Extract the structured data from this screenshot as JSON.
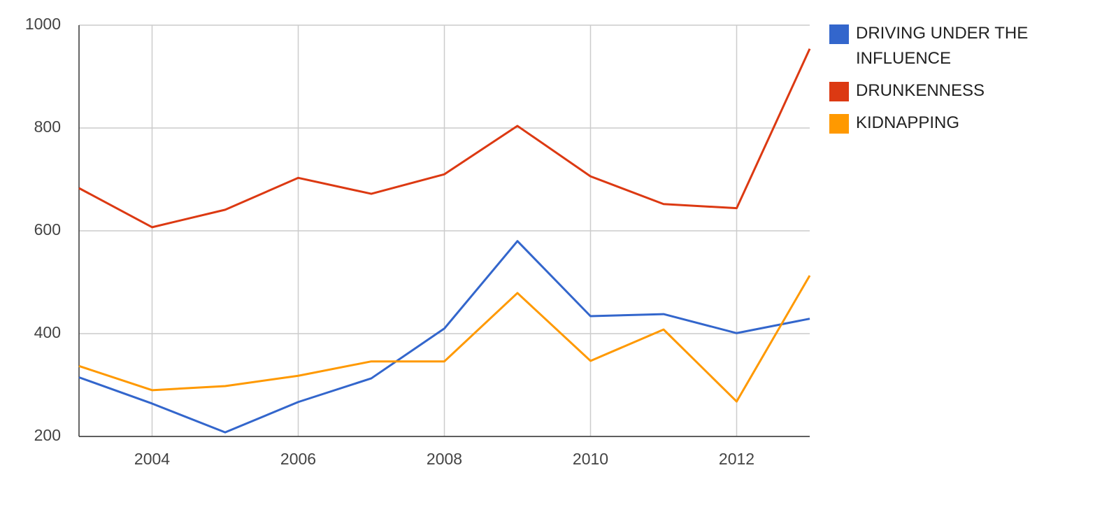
{
  "chart_data": {
    "type": "line",
    "x": [
      2003,
      2004,
      2005,
      2006,
      2007,
      2008,
      2009,
      2010,
      2011,
      2012,
      2013
    ],
    "xlim": [
      2003,
      2013
    ],
    "xticks": [
      2004,
      2006,
      2008,
      2010,
      2012
    ],
    "ylim": [
      200,
      1000
    ],
    "yticks": [
      200,
      400,
      600,
      800,
      1000
    ],
    "grid": true,
    "legend": "right",
    "series": [
      {
        "name": "DRIVING UNDER THE INFLUENCE",
        "color": "#3366cc",
        "values": [
          315,
          264,
          208,
          267,
          313,
          410,
          580,
          434,
          438,
          401,
          429
        ]
      },
      {
        "name": "DRUNKENNESS",
        "color": "#dc3912",
        "values": [
          683,
          607,
          641,
          703,
          672,
          710,
          804,
          706,
          652,
          644,
          954
        ]
      },
      {
        "name": "KIDNAPPING",
        "color": "#ff9900",
        "values": [
          337,
          290,
          298,
          318,
          346,
          346,
          479,
          347,
          408,
          268,
          513
        ]
      }
    ]
  }
}
